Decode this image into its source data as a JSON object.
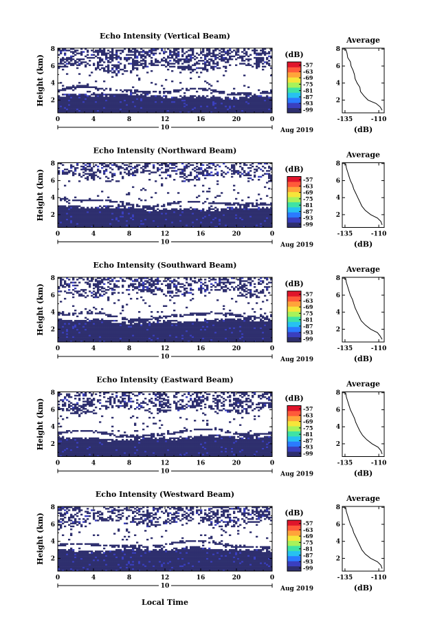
{
  "chart_data": {
    "type": "heatmap",
    "xlabel": "Local Time",
    "date_label": "Aug 2019",
    "date_day": "10",
    "ylabel": "Height (km)",
    "x_ticks": [
      "0",
      "4",
      "8",
      "12",
      "16",
      "20",
      "0"
    ],
    "xlim": [
      0,
      24
    ],
    "y_ticks": [
      "2",
      "4",
      "6",
      "8"
    ],
    "ylim": [
      0.5,
      8.1
    ],
    "colorbar": {
      "unit_label": "(dB)",
      "ticks": [
        "-57",
        "-63",
        "-69",
        "-75",
        "-81",
        "-87",
        "-93",
        "-99"
      ],
      "range": [
        -102,
        -54
      ],
      "colors": [
        "#2e2f6e",
        "#3a3fbf",
        "#2b7bff",
        "#27c2f0",
        "#3fe3a4",
        "#a8f25a",
        "#f6e53a",
        "#ffa43b",
        "#ff5a3a",
        "#e0152b"
      ]
    },
    "profile": {
      "title": "Average",
      "xlabel": "(dB)",
      "x_ticks": [
        "-135",
        "-110"
      ],
      "xlim": [
        -137,
        -106
      ],
      "y_ticks": [
        "2",
        "4",
        "6",
        "8"
      ]
    },
    "panels": [
      {
        "title": "Echo Intensity (Vertical Beam)",
        "lower_top": 2.6,
        "gap_top": 3.9,
        "upper_bottom": 5.6,
        "upper_density": 0.55,
        "profile_points": [
          [
            -134.5,
            8.0
          ],
          [
            -133.5,
            7.5
          ],
          [
            -133.0,
            7.0
          ],
          [
            -131.0,
            6.5
          ],
          [
            -130.5,
            6.0
          ],
          [
            -129.0,
            5.5
          ],
          [
            -128.0,
            5.0
          ],
          [
            -127.5,
            4.5
          ],
          [
            -126.0,
            4.0
          ],
          [
            -124.0,
            3.5
          ],
          [
            -123.5,
            3.0
          ],
          [
            -121.0,
            2.5
          ],
          [
            -118.0,
            2.0
          ],
          [
            -112.0,
            1.6
          ],
          [
            -109.0,
            1.2
          ],
          [
            -107.5,
            0.8
          ]
        ]
      },
      {
        "title": "Echo Intensity (Northward Beam)",
        "lower_top": 2.9,
        "gap_top": 3.7,
        "upper_bottom": 6.3,
        "upper_density": 0.45,
        "profile_points": [
          [
            -134.5,
            8.0
          ],
          [
            -134.0,
            7.5
          ],
          [
            -133.0,
            7.0
          ],
          [
            -132.0,
            6.5
          ],
          [
            -131.0,
            6.0
          ],
          [
            -129.5,
            5.5
          ],
          [
            -128.5,
            5.0
          ],
          [
            -127.0,
            4.5
          ],
          [
            -125.5,
            4.0
          ],
          [
            -124.0,
            3.5
          ],
          [
            -122.5,
            3.0
          ],
          [
            -120.0,
            2.5
          ],
          [
            -116.0,
            2.0
          ],
          [
            -111.0,
            1.6
          ],
          [
            -108.5,
            1.2
          ],
          [
            -107.5,
            0.8
          ]
        ]
      },
      {
        "title": "Echo Intensity (Southward Beam)",
        "lower_top": 3.1,
        "gap_top": 4.0,
        "upper_bottom": 6.1,
        "upper_density": 0.5,
        "profile_points": [
          [
            -134.5,
            8.0
          ],
          [
            -134.0,
            7.5
          ],
          [
            -133.0,
            7.0
          ],
          [
            -132.0,
            6.5
          ],
          [
            -131.0,
            6.0
          ],
          [
            -129.5,
            5.5
          ],
          [
            -128.5,
            5.0
          ],
          [
            -127.5,
            4.5
          ],
          [
            -126.0,
            4.0
          ],
          [
            -124.5,
            3.5
          ],
          [
            -123.0,
            3.0
          ],
          [
            -120.0,
            2.5
          ],
          [
            -116.0,
            2.0
          ],
          [
            -111.0,
            1.6
          ],
          [
            -109.0,
            1.2
          ],
          [
            -107.5,
            0.8
          ]
        ]
      },
      {
        "title": "Echo Intensity (Eastward Beam)",
        "lower_top": 2.8,
        "gap_top": 3.6,
        "upper_bottom": 5.9,
        "upper_density": 0.5,
        "profile_points": [
          [
            -134.5,
            8.0
          ],
          [
            -134.0,
            7.5
          ],
          [
            -133.0,
            7.0
          ],
          [
            -132.0,
            6.5
          ],
          [
            -131.0,
            6.0
          ],
          [
            -129.5,
            5.5
          ],
          [
            -128.0,
            5.0
          ],
          [
            -127.0,
            4.5
          ],
          [
            -125.5,
            4.0
          ],
          [
            -124.0,
            3.5
          ],
          [
            -122.0,
            3.0
          ],
          [
            -119.0,
            2.5
          ],
          [
            -115.0,
            2.0
          ],
          [
            -110.5,
            1.6
          ],
          [
            -108.5,
            1.2
          ],
          [
            -107.5,
            0.8
          ]
        ]
      },
      {
        "title": "Echo Intensity (Westward Beam)",
        "lower_top": 3.1,
        "gap_top": 3.9,
        "upper_bottom": 6.0,
        "upper_density": 0.5,
        "profile_points": [
          [
            -134.5,
            8.0
          ],
          [
            -134.0,
            7.5
          ],
          [
            -133.0,
            7.0
          ],
          [
            -132.0,
            6.5
          ],
          [
            -131.0,
            6.0
          ],
          [
            -129.5,
            5.5
          ],
          [
            -128.5,
            5.0
          ],
          [
            -127.0,
            4.5
          ],
          [
            -125.5,
            4.0
          ],
          [
            -124.0,
            3.5
          ],
          [
            -122.5,
            3.0
          ],
          [
            -120.0,
            2.5
          ],
          [
            -116.0,
            2.0
          ],
          [
            -111.0,
            1.6
          ],
          [
            -108.5,
            1.2
          ],
          [
            -107.5,
            0.8
          ]
        ]
      }
    ]
  }
}
